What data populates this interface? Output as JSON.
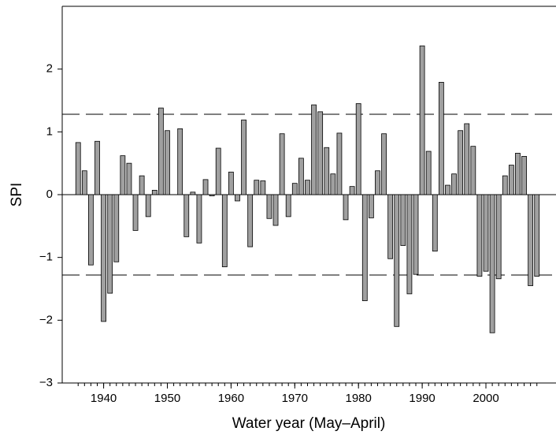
{
  "chart_data": {
    "type": "bar",
    "x_label": "Water year (May–April)",
    "y_label": "SPI",
    "x": [
      1936,
      1937,
      1938,
      1939,
      1940,
      1941,
      1942,
      1943,
      1944,
      1945,
      1946,
      1947,
      1948,
      1949,
      1950,
      1951,
      1952,
      1953,
      1954,
      1955,
      1956,
      1957,
      1958,
      1959,
      1960,
      1961,
      1962,
      1963,
      1964,
      1965,
      1966,
      1967,
      1968,
      1969,
      1970,
      1971,
      1972,
      1973,
      1974,
      1975,
      1976,
      1977,
      1978,
      1979,
      1980,
      1981,
      1982,
      1983,
      1984,
      1985,
      1986,
      1987,
      1988,
      1989,
      1990,
      1991,
      1992,
      1993,
      1994,
      1995,
      1996,
      1997,
      1998,
      1999,
      2000,
      2001,
      2002,
      2003,
      2004,
      2005,
      2006,
      2007,
      2008
    ],
    "values": [
      0.83,
      0.38,
      -1.12,
      0.85,
      -2.02,
      -1.57,
      -1.07,
      0.62,
      0.5,
      -0.57,
      0.3,
      -0.35,
      0.07,
      1.38,
      1.02,
      0,
      1.05,
      -0.67,
      0.04,
      -0.77,
      0.24,
      -0.02,
      0.74,
      -1.15,
      0.36,
      -0.1,
      1.19,
      -0.83,
      0.23,
      0.22,
      -0.38,
      -0.49,
      0.97,
      -0.35,
      0.18,
      0.58,
      0.23,
      1.43,
      1.32,
      0.75,
      0.33,
      0.98,
      -0.4,
      0.13,
      1.45,
      -1.69,
      -0.37,
      0.38,
      0.97,
      -1.02,
      -2.1,
      -0.81,
      -1.58,
      -1.27,
      2.37,
      0.69,
      -0.9,
      1.79,
      0.15,
      0.33,
      1.02,
      1.13,
      0.77,
      -1.3,
      -1.22,
      -2.2,
      -1.34,
      0.3,
      0.47,
      0.66,
      0.61,
      -1.45,
      -1.3
    ],
    "color": "#a0a0a0",
    "thresholds": [
      1.28,
      -1.28
    ],
    "xlim": [
      1933.5,
      2011
    ],
    "ylim": [
      -3,
      3
    ],
    "xticks": [
      1940,
      1950,
      1960,
      1970,
      1980,
      1990,
      2000
    ],
    "yticks": [
      {
        "value": -3,
        "label": "−3"
      },
      {
        "value": -2,
        "label": "−2"
      },
      {
        "value": -1,
        "label": "−1"
      },
      0,
      1,
      2
    ]
  }
}
